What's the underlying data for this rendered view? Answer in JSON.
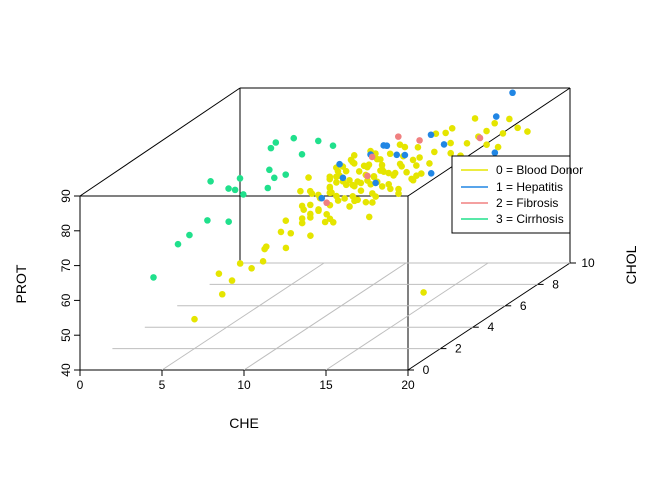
{
  "chart_data": {
    "type": "scatter3d",
    "xlabel": "CHE",
    "ylabel": "CHOL",
    "zlabel": "PROT",
    "xlim": [
      0,
      20
    ],
    "ylim": [
      0,
      10
    ],
    "zlim": [
      40,
      90
    ],
    "x_ticks": [
      "0",
      "5",
      "10",
      "15",
      "20"
    ],
    "y_ticks": [
      "0",
      "2",
      "4",
      "6",
      "8",
      "10"
    ],
    "z_ticks": [
      "40",
      "50",
      "60",
      "70",
      "80",
      "90"
    ],
    "grid": true,
    "legend_position": "right",
    "series": [
      {
        "name": "0 = Blood Donor",
        "color": "#e5e500",
        "points": [
          [
            8.5,
            5,
            76
          ],
          [
            9.3,
            5.3,
            74
          ],
          [
            10.1,
            5.8,
            78
          ],
          [
            11.2,
            6.5,
            79
          ],
          [
            12.4,
            6.8,
            75
          ],
          [
            9.0,
            4.6,
            73
          ],
          [
            10.5,
            5.6,
            77
          ],
          [
            11.8,
            6.1,
            72
          ],
          [
            8.8,
            4.9,
            71
          ],
          [
            10.8,
            5.9,
            75
          ],
          [
            13.2,
            7.4,
            76
          ],
          [
            9.8,
            5.5,
            74
          ],
          [
            11.5,
            6.3,
            74
          ],
          [
            12.0,
            6.0,
            77
          ],
          [
            10.3,
            5.0,
            72
          ],
          [
            9.5,
            5.8,
            77
          ],
          [
            11.0,
            6.6,
            78
          ],
          [
            12.8,
            6.2,
            73
          ],
          [
            10.6,
            4.7,
            69
          ],
          [
            8.7,
            5.3,
            79
          ],
          [
            11.2,
            6.9,
            81
          ],
          [
            13.5,
            7.1,
            74
          ],
          [
            12.0,
            5.9,
            70
          ],
          [
            10.0,
            5.3,
            76
          ],
          [
            11.8,
            7.2,
            80
          ],
          [
            9.2,
            4.4,
            70
          ],
          [
            10.9,
            6.2,
            78
          ],
          [
            12.6,
            6.7,
            76
          ],
          [
            11.2,
            5.5,
            73
          ],
          [
            10.1,
            6.0,
            80
          ],
          [
            12.2,
            7.4,
            82
          ],
          [
            13.8,
            7.6,
            76
          ],
          [
            9.8,
            4.8,
            71
          ],
          [
            11.6,
            6.0,
            76
          ],
          [
            10.5,
            5.2,
            74
          ],
          [
            12.9,
            7.8,
            80
          ],
          [
            11.0,
            5.8,
            75
          ],
          [
            10.0,
            4.6,
            72
          ],
          [
            12.4,
            6.1,
            74
          ],
          [
            8.4,
            4.2,
            70
          ],
          [
            9.6,
            5.7,
            78
          ],
          [
            11.4,
            7.0,
            79
          ],
          [
            13.0,
            6.5,
            72
          ],
          [
            10.7,
            5.6,
            76
          ],
          [
            12.1,
            6.5,
            77
          ],
          [
            9.4,
            4.7,
            73
          ],
          [
            11.1,
            6.1,
            75
          ],
          [
            12.7,
            7.0,
            77
          ],
          [
            10.4,
            5.9,
            79
          ],
          [
            11.9,
            5.6,
            71
          ],
          [
            13.3,
            7.5,
            78
          ],
          [
            10.2,
            5.2,
            75
          ],
          [
            11.5,
            6.7,
            80
          ],
          [
            12.3,
            5.8,
            72
          ],
          [
            9.7,
            5.0,
            74
          ],
          [
            10.9,
            5.3,
            73
          ],
          [
            12.5,
            7.3,
            79
          ],
          [
            11.3,
            6.2,
            77
          ],
          [
            10.6,
            6.1,
            81
          ],
          [
            13.1,
            6.4,
            71
          ],
          [
            9.9,
            5.4,
            76
          ],
          [
            11.7,
            6.8,
            78
          ],
          [
            12.0,
            6.2,
            75
          ],
          [
            10.3,
            4.8,
            70
          ],
          [
            11.0,
            6.4,
            79
          ],
          [
            12.8,
            7.6,
            77
          ],
          [
            9.1,
            5.1,
            75
          ],
          [
            10.8,
            5.7,
            77
          ],
          [
            12.2,
            6.7,
            76
          ],
          [
            11.4,
            5.4,
            72
          ],
          [
            13.6,
            7.3,
            74
          ],
          [
            10.0,
            5.7,
            78
          ],
          [
            11.6,
            6.4,
            76
          ],
          [
            12.6,
            6.3,
            74
          ],
          [
            9.6,
            4.5,
            71
          ],
          [
            11.1,
            5.9,
            76
          ],
          [
            10.5,
            6.3,
            80
          ],
          [
            12.9,
            7.1,
            75
          ],
          [
            11.8,
            6.6,
            77
          ],
          [
            10.2,
            5.5,
            77
          ],
          [
            12.4,
            7.5,
            81
          ],
          [
            11.3,
            5.2,
            71
          ],
          [
            13.4,
            7.0,
            73
          ],
          [
            9.9,
            5.9,
            79
          ],
          [
            11.0,
            6.8,
            82
          ],
          [
            12.1,
            6.4,
            78
          ],
          [
            10.7,
            5.1,
            73
          ],
          [
            11.5,
            5.7,
            74
          ],
          [
            12.7,
            6.9,
            78
          ],
          [
            10.4,
            6.4,
            82
          ],
          [
            14.5,
            8.2,
            80
          ],
          [
            15.2,
            8.5,
            79
          ],
          [
            15.9,
            9.0,
            81
          ],
          [
            16.8,
            9.1,
            80
          ],
          [
            17.5,
            9.3,
            81
          ],
          [
            16.2,
            8.7,
            78
          ],
          [
            14.8,
            7.9,
            78
          ],
          [
            15.6,
            8.8,
            80
          ],
          [
            16.0,
            9.4,
            82
          ],
          [
            17.8,
            9.6,
            79
          ],
          [
            14.2,
            8.6,
            83
          ],
          [
            13.7,
            8.1,
            83
          ],
          [
            15.0,
            9.2,
            84
          ],
          [
            16.5,
            9.8,
            82
          ],
          [
            14.0,
            7.7,
            79
          ],
          [
            15.3,
            8.0,
            77
          ],
          [
            13.9,
            8.5,
            82
          ],
          [
            16.8,
            8.8,
            77
          ],
          [
            6.0,
            2.5,
            60
          ],
          [
            6.5,
            2.2,
            55
          ],
          [
            7.5,
            3.0,
            60
          ],
          [
            5.5,
            1.5,
            50
          ],
          [
            8.0,
            3.4,
            65
          ],
          [
            8.5,
            3.8,
            68
          ],
          [
            7.0,
            2.8,
            62
          ],
          [
            9.0,
            3.6,
            64
          ],
          [
            17.0,
            4.0,
            50
          ],
          [
            9.3,
            4.3,
            69
          ],
          [
            8.9,
            4.0,
            67
          ],
          [
            10.0,
            4.1,
            66
          ],
          [
            6.8,
            2.5,
            58
          ],
          [
            7.8,
            3.5,
            64
          ],
          [
            9.6,
            4.5,
            70
          ],
          [
            10.8,
            4.7,
            68
          ],
          [
            8.2,
            3.0,
            62
          ],
          [
            11.5,
            5.5,
            72
          ],
          [
            12.5,
            5.2,
            68
          ],
          [
            13.5,
            6.8,
            74
          ],
          [
            10.6,
            4.4,
            69
          ],
          [
            9.1,
            5.0,
            76
          ],
          [
            9.8,
            5.9,
            80
          ],
          [
            10.3,
            6.3,
            81
          ]
        ]
      },
      {
        "name": "1 = Hepatitis",
        "color": "#2186e4",
        "points": [
          [
            10.5,
            5.6,
            78
          ],
          [
            12.3,
            7.1,
            80
          ],
          [
            13.5,
            8.0,
            83
          ],
          [
            15.8,
            9.7,
            83
          ],
          [
            14.5,
            7.0,
            75
          ],
          [
            9.8,
            5.0,
            74
          ],
          [
            11.0,
            6.8,
            81
          ],
          [
            16.8,
            8.6,
            76
          ],
          [
            12.5,
            7.4,
            79
          ],
          [
            11.6,
            7.0,
            83
          ],
          [
            13.9,
            8.4,
            79
          ],
          [
            10.0,
            5.9,
            81
          ],
          [
            12.0,
            6.1,
            75
          ],
          [
            16.2,
            10.3,
            88
          ],
          [
            11.5,
            7.3,
            82
          ]
        ]
      },
      {
        "name": "2 = Fibrosis",
        "color": "#f08080",
        "points": [
          [
            10.2,
            4.9,
            73
          ],
          [
            12.0,
            7.5,
            84
          ],
          [
            15.5,
            9.0,
            79
          ],
          [
            13.0,
            7.8,
            82
          ],
          [
            11.5,
            6.1,
            77
          ],
          [
            16.5,
            7.8,
            72
          ],
          [
            11.0,
            6.9,
            80
          ]
        ]
      },
      {
        "name": "3 = Cirrhosis",
        "color": "#20e08c",
        "points": [
          [
            3.0,
            1.5,
            62
          ],
          [
            5.0,
            3.0,
            85
          ],
          [
            7.0,
            5.0,
            90
          ],
          [
            7.5,
            4.0,
            80
          ],
          [
            6.0,
            3.5,
            81
          ],
          [
            4.5,
            2.2,
            72
          ],
          [
            6.2,
            3.6,
            84
          ],
          [
            8.0,
            4.6,
            82
          ],
          [
            4.0,
            2.0,
            70
          ],
          [
            6.6,
            3.4,
            80
          ],
          [
            7.6,
            4.3,
            82
          ],
          [
            8.8,
            5.8,
            88
          ],
          [
            5.2,
            2.6,
            75
          ],
          [
            6.9,
            4.8,
            89
          ],
          [
            6.3,
            2.8,
            74
          ],
          [
            9.5,
            6.0,
            86
          ],
          [
            7.2,
            4.4,
            84
          ],
          [
            5.8,
            3.3,
            82
          ],
          [
            8.4,
            5.2,
            86
          ],
          [
            7.7,
            5.4,
            90
          ]
        ]
      }
    ]
  },
  "legend": {
    "items": [
      {
        "label": "0 = Blood Donor",
        "color": "#e5e500"
      },
      {
        "label": "1 = Hepatitis",
        "color": "#2186e4"
      },
      {
        "label": "2 = Fibrosis",
        "color": "#f08080"
      },
      {
        "label": "3 = Cirrhosis",
        "color": "#20e08c"
      }
    ]
  }
}
